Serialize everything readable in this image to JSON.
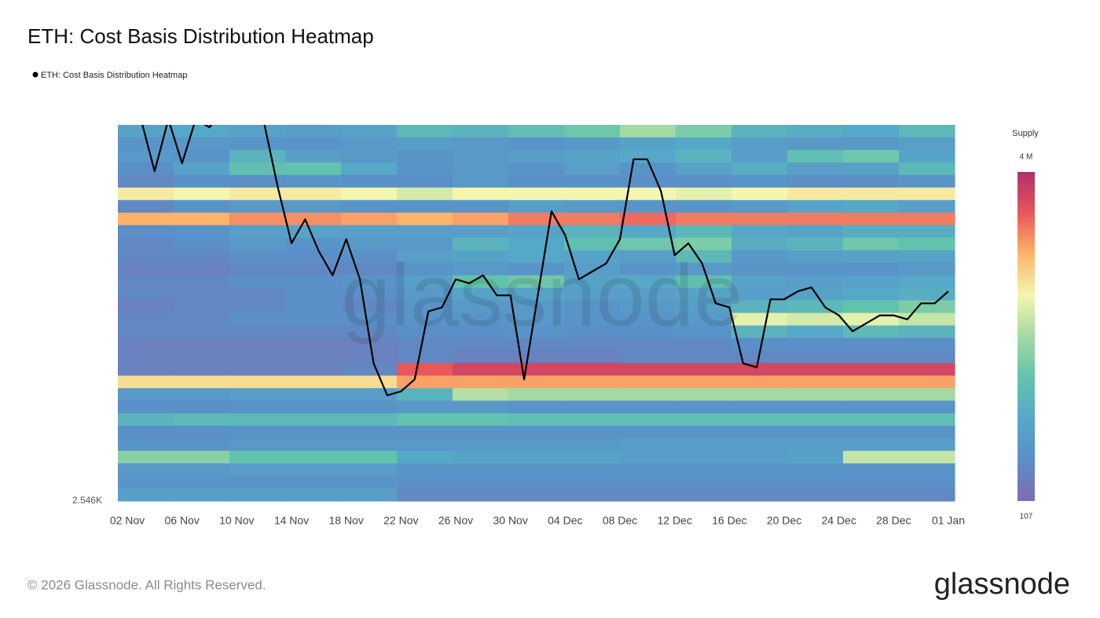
{
  "chart_data": {
    "type": "heatmap",
    "title": "ETH: Cost Basis Distribution Heatmap",
    "categories": [
      null,
      "02 Nov",
      null,
      null,
      null,
      "06 Nov",
      null,
      null,
      null,
      "10 Nov",
      null,
      null,
      null,
      "14 Nov",
      null,
      null,
      null,
      "18 Nov",
      null,
      null,
      null,
      "22 Nov",
      null,
      null,
      null,
      "26 Nov",
      null,
      null,
      null,
      "30 Nov",
      null,
      null,
      null,
      "04 Dec",
      null,
      null,
      null,
      "08 Dec",
      null,
      null,
      null,
      "12 Dec",
      null,
      null,
      null,
      "16 Dec",
      null,
      null,
      null,
      "20 Dec",
      null,
      null,
      null,
      "24 Dec",
      null,
      null,
      null,
      "28 Dec",
      null,
      null,
      null,
      "01 Jan"
    ],
    "series": [
      {
        "name": "ETH: Cost Basis Distribution Heatmap",
        "color": "#000000",
        "values": [
          null,
          null,
          3500,
          3370,
          3500,
          3390,
          3500,
          3480,
          3520,
          3520,
          3500,
          3490,
          3330,
          3190,
          3250,
          3170,
          3110,
          3200,
          3100,
          2890,
          2810,
          2820,
          2850,
          3020,
          3030,
          3100,
          3090,
          3110,
          3060,
          3060,
          2850,
          3060,
          3270,
          3210,
          3100,
          3120,
          3140,
          3200,
          3400,
          3400,
          3320,
          3160,
          3190,
          3140,
          3040,
          3030,
          2890,
          2880,
          3050,
          3050,
          3070,
          3080,
          3030,
          3010,
          2970,
          2990,
          3010,
          3010,
          3000,
          3040,
          3040,
          3070
        ]
      }
    ],
    "ylim": [
      2546,
      3486
    ],
    "yticks": [
      {
        "value": 2546,
        "label": "2.546K"
      }
    ],
    "grid": false,
    "heatmap": {
      "values": [
        [
          900000,
          1000000,
          900000,
          800000,
          900000,
          1300000,
          1200000,
          1400000,
          1600000,
          2000000,
          1700000,
          1200000,
          1100000,
          1000000,
          1300000
        ],
        [
          600000,
          700000,
          600000,
          600000,
          700000,
          800000,
          700000,
          600000,
          700000,
          900000,
          1000000,
          800000,
          700000,
          700000,
          800000
        ],
        [
          700000,
          600000,
          1200000,
          800000,
          700000,
          600000,
          700000,
          800000,
          900000,
          1000000,
          1200000,
          800000,
          1400000,
          1600000,
          900000
        ],
        [
          500000,
          900000,
          1400000,
          1500000,
          1000000,
          600000,
          700000,
          600000,
          800000,
          600000,
          900000,
          1100000,
          800000,
          900000,
          1300000
        ],
        [
          400000,
          500000,
          500000,
          600000,
          500000,
          500000,
          700000,
          500000,
          500000,
          500000,
          500000,
          600000,
          500000,
          500000,
          600000
        ],
        [
          2600000,
          2500000,
          2600000,
          2600000,
          2500000,
          2300000,
          2500000,
          2500000,
          2500000,
          2500000,
          2400000,
          2500000,
          2600000,
          2600000,
          2600000
        ],
        [
          400000,
          600000,
          700000,
          700000,
          600000,
          600000,
          600000,
          800000,
          700000,
          600000,
          600000,
          700000,
          900000,
          1000000,
          800000
        ],
        [
          3000000,
          3000000,
          3200000,
          3200000,
          3100000,
          3000000,
          3100000,
          3300000,
          3300000,
          3400000,
          3300000,
          3300000,
          3300000,
          3300000,
          3300000
        ],
        [
          500000,
          600000,
          800000,
          900000,
          800000,
          800000,
          800000,
          900000,
          1200000,
          1000000,
          1300000,
          1000000,
          900000,
          1100000,
          1100000
        ],
        [
          400000,
          500000,
          700000,
          600000,
          700000,
          700000,
          1200000,
          1000000,
          1400000,
          1600000,
          1700000,
          1100000,
          1200000,
          1600000,
          1500000
        ],
        [
          400000,
          400000,
          500000,
          500000,
          500000,
          800000,
          900000,
          1000000,
          900000,
          800000,
          1300000,
          700000,
          800000,
          900000,
          900000
        ],
        [
          300000,
          300000,
          400000,
          400000,
          400000,
          600000,
          700000,
          600000,
          800000,
          600000,
          700000,
          600000,
          600000,
          600000,
          700000
        ],
        [
          400000,
          400000,
          500000,
          500000,
          600000,
          800000,
          1500000,
          1600000,
          900000,
          1000000,
          1400000,
          900000,
          800000,
          900000,
          1000000
        ],
        [
          400000,
          400000,
          400000,
          500000,
          500000,
          700000,
          900000,
          900000,
          800000,
          800000,
          900000,
          800000,
          900000,
          1000000,
          1100000
        ],
        [
          300000,
          400000,
          400000,
          500000,
          400000,
          600000,
          700000,
          700000,
          600000,
          700000,
          800000,
          1200000,
          1300000,
          1500000,
          1700000
        ],
        [
          400000,
          400000,
          500000,
          500000,
          500000,
          600000,
          600000,
          700000,
          600000,
          600000,
          700000,
          2400000,
          2300000,
          2400000,
          2200000
        ],
        [
          400000,
          400000,
          400000,
          400000,
          400000,
          500000,
          500000,
          600000,
          500000,
          500000,
          600000,
          1200000,
          1000000,
          1300000,
          1200000
        ],
        [
          300000,
          300000,
          300000,
          300000,
          300000,
          400000,
          400000,
          400000,
          400000,
          400000,
          400000,
          500000,
          500000,
          500000,
          500000
        ],
        [
          300000,
          300000,
          300000,
          300000,
          300000,
          400000,
          300000,
          300000,
          300000,
          400000,
          400000,
          400000,
          400000,
          400000,
          400000
        ],
        [
          300000,
          300000,
          300000,
          300000,
          400000,
          3500000,
          3700000,
          3700000,
          3700000,
          3700000,
          3700000,
          3700000,
          3700000,
          3700000,
          3700000
        ],
        [
          2700000,
          2700000,
          2700000,
          2700000,
          2700000,
          3100000,
          3100000,
          3100000,
          3100000,
          3100000,
          3100000,
          3100000,
          3100000,
          3100000,
          3100000
        ],
        [
          700000,
          700000,
          800000,
          800000,
          800000,
          1200000,
          2100000,
          2000000,
          2000000,
          2000000,
          2000000,
          2000000,
          2000000,
          2000000,
          2000000
        ],
        [
          500000,
          500000,
          600000,
          600000,
          600000,
          700000,
          700000,
          600000,
          600000,
          600000,
          600000,
          600000,
          600000,
          600000,
          600000
        ],
        [
          1200000,
          1300000,
          1300000,
          1300000,
          1300000,
          1500000,
          1500000,
          1400000,
          1400000,
          1400000,
          1400000,
          1400000,
          1400000,
          1400000,
          1400000
        ],
        [
          500000,
          500000,
          600000,
          600000,
          600000,
          600000,
          600000,
          600000,
          600000,
          600000,
          600000,
          600000,
          600000,
          600000,
          600000
        ],
        [
          600000,
          600000,
          700000,
          700000,
          700000,
          700000,
          700000,
          700000,
          700000,
          800000,
          800000,
          800000,
          800000,
          800000,
          800000
        ],
        [
          1800000,
          1800000,
          1500000,
          1500000,
          1500000,
          1000000,
          900000,
          900000,
          900000,
          800000,
          800000,
          800000,
          900000,
          2200000,
          2200000
        ],
        [
          700000,
          700000,
          800000,
          800000,
          800000,
          600000,
          600000,
          600000,
          600000,
          600000,
          600000,
          600000,
          600000,
          600000,
          600000
        ],
        [
          600000,
          600000,
          600000,
          600000,
          600000,
          500000,
          500000,
          500000,
          500000,
          500000,
          500000,
          500000,
          500000,
          500000,
          500000
        ],
        [
          800000,
          800000,
          800000,
          800000,
          800000,
          400000,
          400000,
          400000,
          400000,
          400000,
          400000,
          400000,
          400000,
          400000,
          400000
        ]
      ]
    },
    "colorbar": {
      "title": "Supply",
      "zlim": [
        107,
        4000000
      ],
      "zticks": [
        {
          "value": 4000000,
          "label": "4 M"
        },
        {
          "value": 107,
          "label": "107"
        }
      ],
      "colorscale": [
        "#7f6cb0",
        "#5a8fc8",
        "#56a8c8",
        "#62c3ad",
        "#a3d9a3",
        "#f4f6b0",
        "#fdb46a",
        "#e8575b",
        "#b0306a"
      ]
    },
    "watermark": "glassnode",
    "footer": "© 2026 Glassnode. All Rights Reserved.",
    "logo": "glassnode"
  }
}
